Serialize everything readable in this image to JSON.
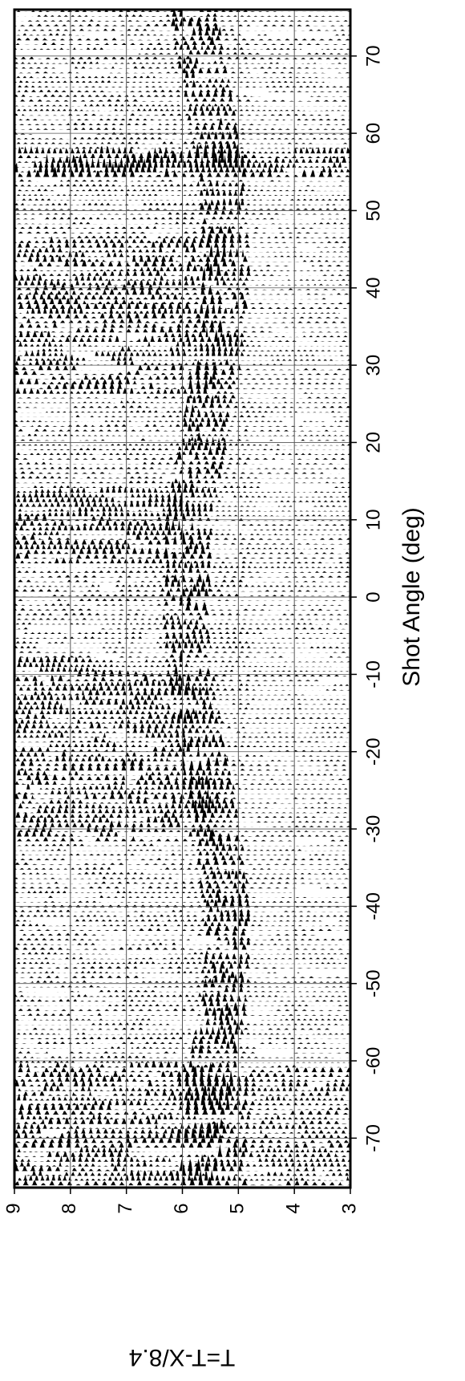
{
  "chart_data": {
    "type": "record-section",
    "xlabel": "Shot Angle (deg)",
    "ylabel": "T=T-X/8.4",
    "xlim": [
      -76.4,
      76
    ],
    "xticks": [
      -70,
      -60,
      -50,
      -40,
      -30,
      -20,
      -10,
      0,
      10,
      20,
      30,
      40,
      50,
      60,
      70
    ],
    "ylim": [
      9,
      3
    ],
    "yticks": [
      9,
      8,
      7,
      6,
      5,
      4,
      3
    ],
    "grid": true,
    "color": "#000000"
  }
}
